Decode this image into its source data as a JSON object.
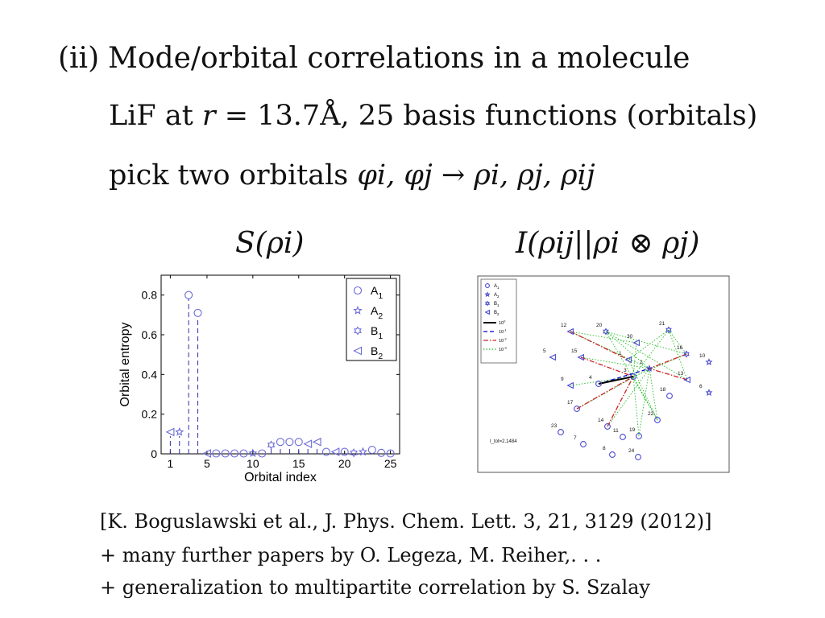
{
  "heading": {
    "number": "(ii)",
    "text": "Mode/orbital correlations in a molecule"
  },
  "line2": {
    "molecule": "LiF at",
    "r_var": "r",
    "equals": "=",
    "distance": "13.7Å,",
    "basis": "25 basis functions (orbitals)"
  },
  "line3": {
    "text": "pick two orbitals",
    "math": "φi, φj → ρi, ρj, ρij"
  },
  "left_label": "S(ρi)",
  "right_label": "I(ρij||ρi ⊗ ρj)",
  "chart_data": [
    {
      "type": "scatter",
      "xlabel": "Orbital index",
      "ylabel": "Orbital entropy",
      "xlim": [
        0,
        26
      ],
      "ylim": [
        0,
        0.9
      ],
      "xticks": [
        1,
        5,
        10,
        15,
        20,
        25
      ],
      "yticks": [
        0,
        0.2,
        0.4,
        0.6,
        0.8
      ],
      "legend_placement": "top-right",
      "series": [
        {
          "name": "A1",
          "marker": "circle",
          "x": [
            3,
            4,
            6,
            7,
            8,
            9,
            11,
            13,
            14,
            15,
            18,
            20,
            23,
            24,
            25
          ],
          "y": [
            0.8,
            0.71,
            0.002,
            0.002,
            0.002,
            0.002,
            0.002,
            0.06,
            0.06,
            0.06,
            0.01,
            0.01,
            0.02,
            0.005,
            0.002
          ]
        },
        {
          "name": "A2",
          "marker": "star",
          "x": [
            2,
            10,
            22
          ],
          "y": [
            0.11,
            0.003,
            0.01
          ]
        },
        {
          "name": "B1",
          "marker": "hexagram",
          "x": [
            12,
            21
          ],
          "y": [
            0.045,
            0.005
          ]
        },
        {
          "name": "B2",
          "marker": "triangle-left",
          "x": [
            1,
            5,
            16,
            17,
            19
          ],
          "y": [
            0.11,
            0.002,
            0.05,
            0.06,
            0.01
          ]
        }
      ],
      "colors": {
        "markers": "#6b6bd8",
        "stems": "#2f2fb0"
      }
    },
    {
      "type": "network",
      "legend": {
        "symbols": [
          "A1",
          "A2",
          "B1",
          "B2"
        ],
        "lines": [
          {
            "label": "10^0",
            "style": "solid",
            "color": "#000000"
          },
          {
            "label": "10^-1",
            "style": "dashed",
            "color": "#0000cc"
          },
          {
            "label": "10^-2",
            "style": "dashdot",
            "color": "#cc2222"
          },
          {
            "label": "10^-3",
            "style": "dotted",
            "color": "#22bb22"
          }
        ]
      },
      "annotation": "I_tot=2.1484",
      "nodes": [
        {
          "id": "12",
          "type": "B2"
        },
        {
          "id": "21",
          "type": "B1"
        },
        {
          "id": "20",
          "type": "B1"
        },
        {
          "id": "30",
          "type": "B2"
        },
        {
          "id": "16",
          "type": "B1"
        },
        {
          "id": "10",
          "type": "A2"
        },
        {
          "id": "5",
          "type": "B2"
        },
        {
          "id": "15",
          "type": "B2"
        },
        {
          "id": "1",
          "type": "B2"
        },
        {
          "id": "2",
          "type": "A2"
        },
        {
          "id": "13",
          "type": "B2"
        },
        {
          "id": "6",
          "type": "A2"
        },
        {
          "id": "4",
          "type": "A1"
        },
        {
          "id": "3",
          "type": "A1"
        },
        {
          "id": "9",
          "type": "B2"
        },
        {
          "id": "18",
          "type": "A1"
        },
        {
          "id": "17",
          "type": "A1"
        },
        {
          "id": "14",
          "type": "A1"
        },
        {
          "id": "22",
          "type": "A1"
        },
        {
          "id": "23",
          "type": "A1"
        },
        {
          "id": "7",
          "type": "A1"
        },
        {
          "id": "19",
          "type": "A1"
        },
        {
          "id": "11",
          "type": "A1"
        },
        {
          "id": "8",
          "type": "A1"
        },
        {
          "id": "24",
          "type": "A1"
        }
      ],
      "edges": [
        {
          "from": "4",
          "to": "3",
          "style": "solid"
        },
        {
          "from": "12",
          "to": "1",
          "style": "dashdot"
        },
        {
          "from": "15",
          "to": "3",
          "style": "dashdot"
        },
        {
          "from": "16",
          "to": "2",
          "style": "dashdot"
        },
        {
          "from": "17",
          "to": "3",
          "style": "dashdot"
        },
        {
          "from": "14",
          "to": "3",
          "style": "dashdot"
        },
        {
          "from": "13",
          "to": "2",
          "style": "dashdot"
        },
        {
          "from": "4",
          "to": "2",
          "style": "dashed"
        },
        {
          "from": "21",
          "to": "1",
          "style": "dotted"
        },
        {
          "from": "20",
          "to": "2",
          "style": "dotted"
        },
        {
          "from": "30",
          "to": "3",
          "style": "dotted"
        },
        {
          "from": "12",
          "to": "2",
          "style": "dotted"
        },
        {
          "from": "21",
          "to": "13",
          "style": "dotted"
        },
        {
          "from": "22",
          "to": "3",
          "style": "dotted"
        },
        {
          "from": "19",
          "to": "3",
          "style": "dotted"
        },
        {
          "from": "14",
          "to": "2",
          "style": "dotted"
        },
        {
          "from": "17",
          "to": "2",
          "style": "dotted"
        },
        {
          "from": "9",
          "to": "3",
          "style": "dotted"
        },
        {
          "from": "15",
          "to": "2",
          "style": "dotted"
        },
        {
          "from": "20",
          "to": "13",
          "style": "dotted"
        },
        {
          "from": "16",
          "to": "3",
          "style": "dotted"
        },
        {
          "from": "21",
          "to": "16",
          "style": "dotted"
        },
        {
          "from": "20",
          "to": "16",
          "style": "dotted"
        },
        {
          "from": "12",
          "to": "30",
          "style": "dotted"
        },
        {
          "from": "22",
          "to": "2",
          "style": "dotted"
        },
        {
          "from": "19",
          "to": "2",
          "style": "dotted"
        },
        {
          "from": "1",
          "to": "22",
          "style": "dotted"
        },
        {
          "from": "21",
          "to": "3",
          "style": "dotted"
        },
        {
          "from": "20",
          "to": "22",
          "style": "dotted"
        }
      ]
    }
  ],
  "references": [
    "[K. Boguslawski et al., J. Phys. Chem. Lett. 3, 21, 3129 (2012)]",
    "+ many further papers by O. Legeza, M. Reiher,. . .",
    "+ generalization to multipartite correlation by S. Szalay"
  ]
}
